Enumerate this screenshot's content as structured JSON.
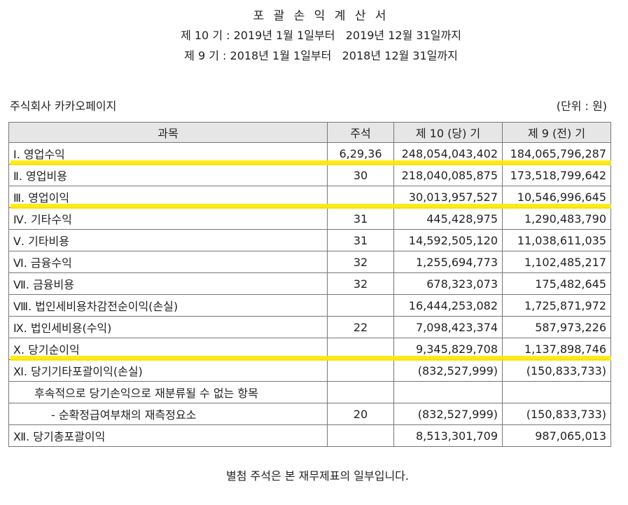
{
  "document": {
    "title": "포 괄 손 익 계 산 서",
    "period_current": "제 10 기 : 2019년 1월 1일부터   2019년 12월 31일까지",
    "period_prior": "제 9 기 : 2018년 1월 1일부터   2018년 12월 31일까지",
    "company": "주식회사 카카오페이지",
    "unit": "(단위 : 원)",
    "footer": "별첨 주석은 본 재무제표의 일부입니다."
  },
  "table": {
    "headers": [
      "과목",
      "주석",
      "제 10 (당) 기",
      "제 9 (전) 기"
    ],
    "rows": [
      {
        "label": "Ⅰ. 영업수익",
        "note": "6,29,36",
        "current": "248,054,043,402",
        "prior": "184,065,796,287",
        "highlight": true
      },
      {
        "label": "Ⅱ. 영업비용",
        "note": "30",
        "current": "218,040,085,875",
        "prior": "173,518,799,642",
        "highlight": false
      },
      {
        "label": "Ⅲ. 영업이익",
        "note": "",
        "current": "30,013,957,527",
        "prior": "10,546,996,645",
        "highlight": true
      },
      {
        "label": "Ⅳ. 기타수익",
        "note": "31",
        "current": "445,428,975",
        "prior": "1,290,483,790",
        "highlight": false
      },
      {
        "label": "Ⅴ. 기타비용",
        "note": "31",
        "current": "14,592,505,120",
        "prior": "11,038,611,035",
        "highlight": false
      },
      {
        "label": "Ⅵ. 금융수익",
        "note": "32",
        "current": "1,255,694,773",
        "prior": "1,102,485,217",
        "highlight": false
      },
      {
        "label": "Ⅶ. 금융비용",
        "note": "32",
        "current": "678,323,073",
        "prior": "175,482,645",
        "highlight": false
      },
      {
        "label": "Ⅷ. 법인세비용차감전순이익(손실)",
        "note": "",
        "current": "16,444,253,082",
        "prior": "1,725,871,972",
        "highlight": false
      },
      {
        "label": "Ⅸ. 법인세비용(수익)",
        "note": "22",
        "current": "7,098,423,374",
        "prior": "587,973,226",
        "highlight": false
      },
      {
        "label": "Ⅹ. 당기순이익",
        "note": "",
        "current": "9,345,829,708",
        "prior": "1,137,898,746",
        "highlight": true
      },
      {
        "label": "Ⅺ. 당기기타포괄이익(손실)",
        "note": "",
        "current": "(832,527,999)",
        "prior": "(150,833,733)",
        "highlight": false
      },
      {
        "label": "후속적으로 당기손익으로 재분류될 수 없는 항목",
        "note": "",
        "current": "",
        "prior": "",
        "highlight": false
      },
      {
        "label": "- 순확정급여부채의 재측정요소",
        "note": "20",
        "current": "(832,527,999)",
        "prior": "(150,833,733)",
        "highlight": false
      },
      {
        "label": "Ⅻ. 당기총포괄이익",
        "note": "",
        "current": "8,513,301,709",
        "prior": "987,065,013",
        "highlight": false
      }
    ]
  },
  "colors": {
    "highlight": "#ffe800",
    "header_bg": "#e6e6e6",
    "border": "#777777"
  }
}
